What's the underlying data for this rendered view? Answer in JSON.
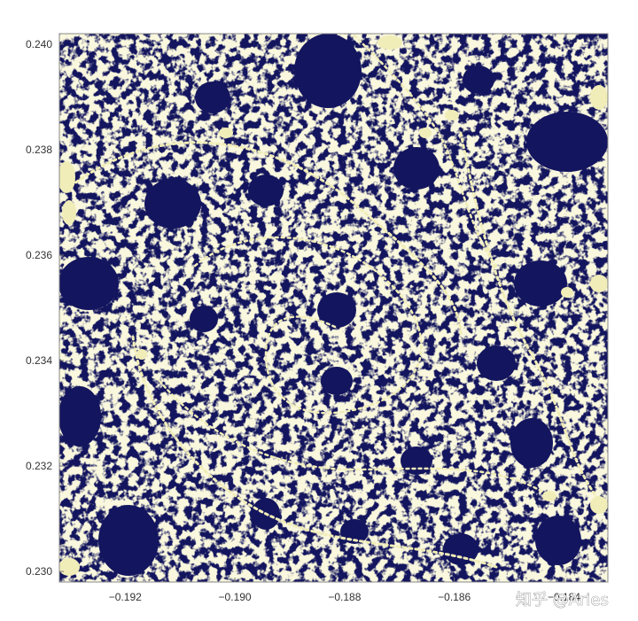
{
  "chart_data": {
    "type": "heatmap",
    "title": "",
    "xlabel": "",
    "ylabel": "",
    "xlim": [
      -0.1932,
      -0.1832
    ],
    "ylim": [
      0.2298,
      0.2402
    ],
    "x_ticks": [
      {
        "value": -0.192,
        "label": "−0.192"
      },
      {
        "value": -0.19,
        "label": "−0.190"
      },
      {
        "value": -0.188,
        "label": "−0.188"
      },
      {
        "value": -0.186,
        "label": "−0.186"
      },
      {
        "value": -0.184,
        "label": "−0.184"
      }
    ],
    "y_ticks": [
      {
        "value": 0.24,
        "label": "0.240"
      },
      {
        "value": 0.238,
        "label": "0.238"
      },
      {
        "value": 0.236,
        "label": "0.236"
      },
      {
        "value": 0.234,
        "label": "0.234"
      },
      {
        "value": 0.232,
        "label": "0.232"
      },
      {
        "value": 0.23,
        "label": "0.230"
      }
    ],
    "grid": false,
    "legend": "none",
    "colors": {
      "interior": "#13155e",
      "boundary": "#f1edb8",
      "frame": "#888888"
    }
  },
  "watermark": {
    "text": "知乎 @Aries"
  }
}
